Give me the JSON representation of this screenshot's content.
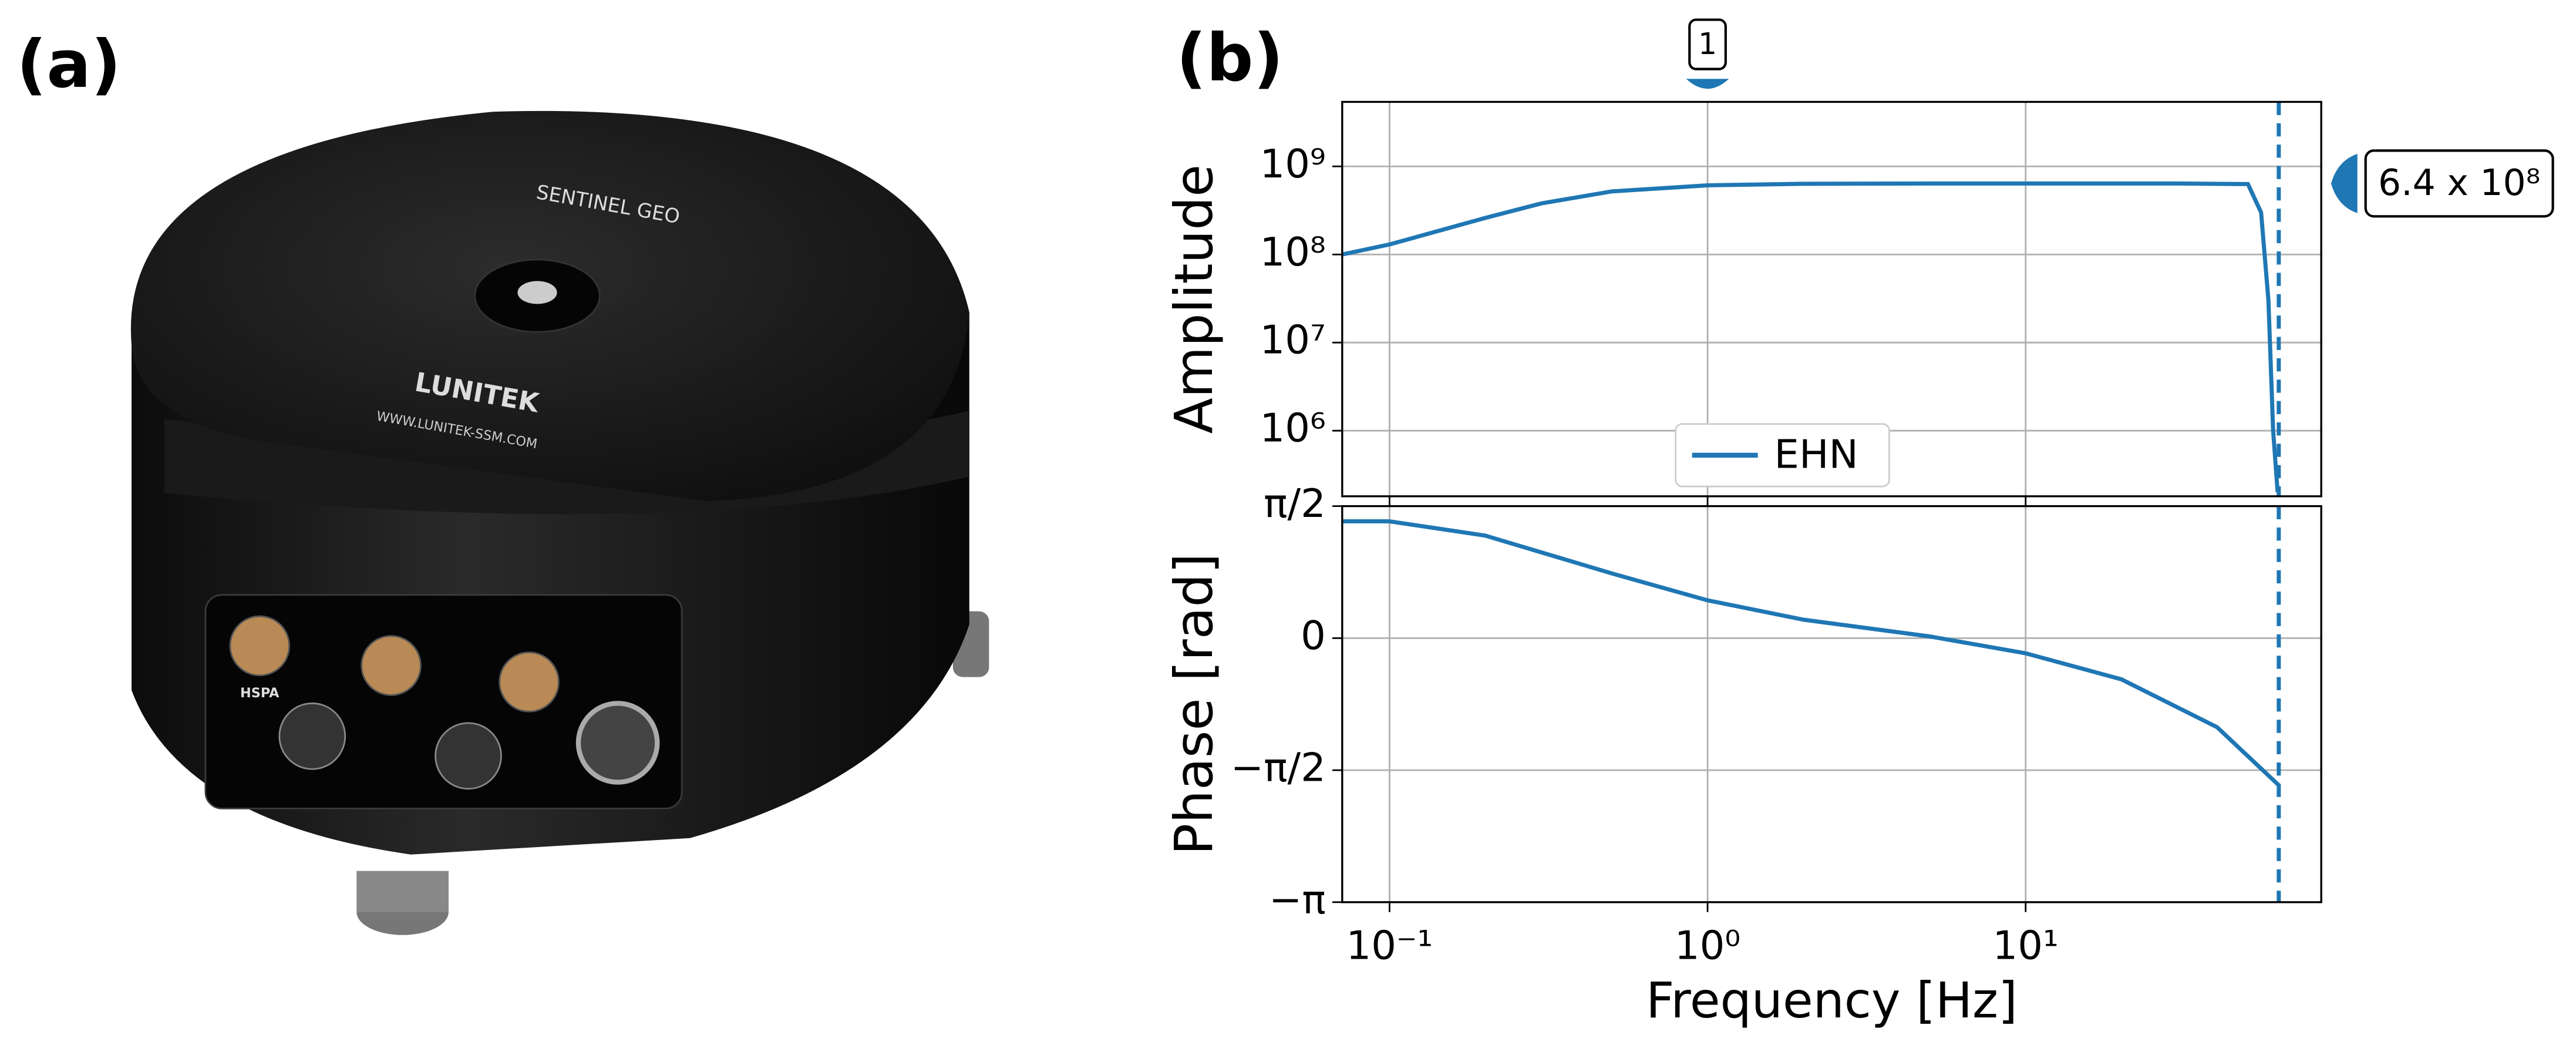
{
  "panel_labels": {
    "a": "(a)",
    "b": "(b)"
  },
  "photo": {
    "brand": "SENTINEL GEO",
    "maker": "LUNITEK",
    "url": "WWW.LUNITEK-SSM.COM",
    "port": "HSPA"
  },
  "chart_data": [
    {
      "type": "line",
      "ylabel": "Amplitude",
      "xscale": "log",
      "yscale": "log",
      "xlim": [
        0.071,
        85
      ],
      "ylim": [
        180000,
        5400000000
      ],
      "xticks": [
        0.1,
        1,
        10
      ],
      "show_xtick_labels": false,
      "yticks": [
        {
          "value": 1000000,
          "label": "10⁶"
        },
        {
          "value": 10000000,
          "label": "10⁷"
        },
        {
          "value": 100000000,
          "label": "10⁸"
        },
        {
          "value": 1000000000,
          "label": "10⁹"
        }
      ],
      "grid": true,
      "legend": "lower center",
      "x": [
        0.071,
        0.1,
        0.2,
        0.3,
        0.5,
        1,
        2,
        5,
        10,
        30,
        50,
        55,
        58,
        60,
        62
      ],
      "series": [
        {
          "name": "EHN",
          "color": "#1f77b4",
          "values": [
            100000000,
            130000000,
            260000000,
            380000000,
            520000000,
            610000000,
            635000000,
            640000000,
            640000000,
            640000000,
            630000000,
            300000000,
            30000000,
            1000000,
            200000
          ]
        }
      ],
      "vline": 62.5,
      "annotations": [
        {
          "text": "1",
          "x": 1
        }
      ],
      "value_marker": {
        "text": "6.4 x 10⁸",
        "value": 640000000
      }
    },
    {
      "type": "line",
      "ylabel": "Phase [rad]",
      "xlabel": "Frequency [Hz]",
      "xscale": "log",
      "yscale": "linear",
      "xlim": [
        0.071,
        85
      ],
      "ylim": [
        -3.14159,
        1.5708
      ],
      "xticks": [
        {
          "value": 0.1,
          "label": "10⁻¹"
        },
        {
          "value": 1,
          "label": "10⁰"
        },
        {
          "value": 10,
          "label": "10¹"
        }
      ],
      "show_xtick_labels": true,
      "yticks": [
        {
          "value": -3.14159,
          "label": "−π"
        },
        {
          "value": -1.5708,
          "label": "−π/2"
        },
        0,
        {
          "value": 1.5708,
          "label": "π/2"
        }
      ],
      "grid": true,
      "x": [
        0.071,
        0.1,
        0.2,
        0.5,
        1,
        2,
        5,
        10,
        20,
        40,
        62.5
      ],
      "series": [
        {
          "name": "EHN",
          "color": "#1f77b4",
          "values": [
            1.39,
            1.39,
            1.22,
            0.77,
            0.45,
            0.22,
            0.02,
            -0.18,
            -0.49,
            -1.06,
            -1.75
          ]
        }
      ],
      "vline": 62.5
    }
  ]
}
